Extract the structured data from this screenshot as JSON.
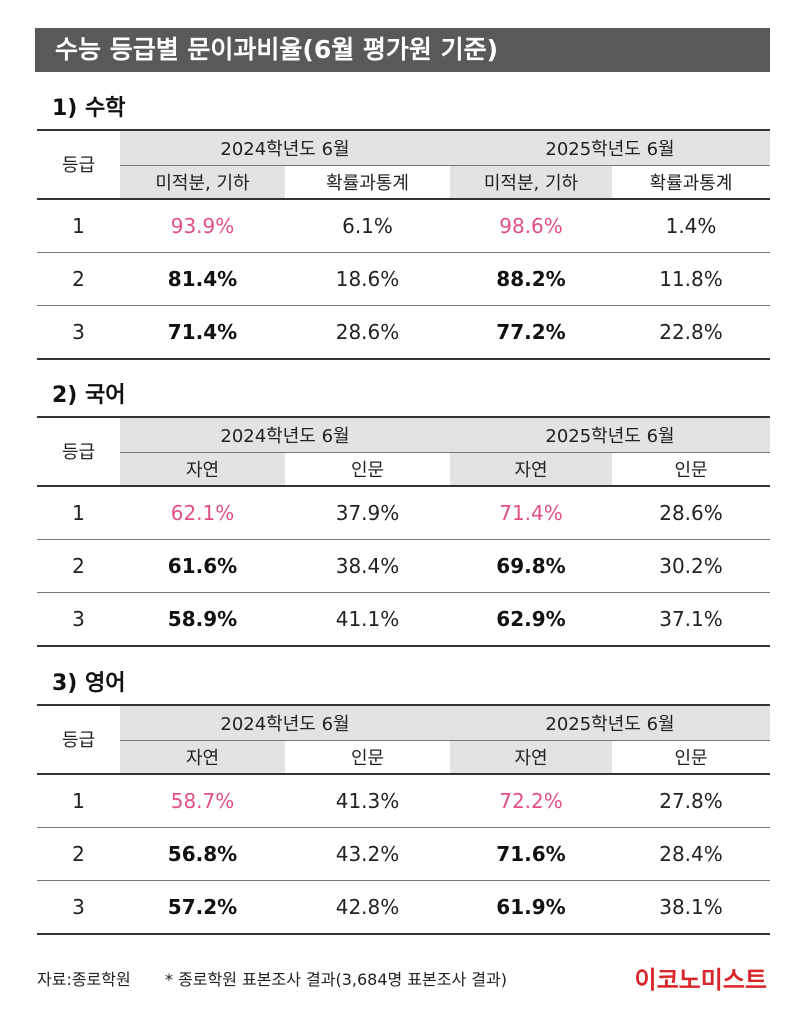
{
  "title": "수능 등급별 문이과비율(6월 평가원 기준)",
  "sections": [
    {
      "heading": "1) 수학",
      "table": {
        "grade_header": "등급",
        "year_headers": [
          "2024학년도 6월",
          "2025학년도 6월"
        ],
        "sub_headers": [
          "미적분, 기하",
          "확률과통계",
          "미적분, 기하",
          "확률과통계"
        ],
        "rows": [
          [
            "1",
            "93.9%",
            "6.1%",
            "98.6%",
            "1.4%"
          ],
          [
            "2",
            "81.4%",
            "18.6%",
            "88.2%",
            "11.8%"
          ],
          [
            "3",
            "71.4%",
            "28.6%",
            "77.2%",
            "22.8%"
          ]
        ]
      }
    },
    {
      "heading": "2) 국어",
      "table": {
        "grade_header": "등급",
        "year_headers": [
          "2024학년도 6월",
          "2025학년도 6월"
        ],
        "sub_headers": [
          "자연",
          "인문",
          "자연",
          "인문"
        ],
        "rows": [
          [
            "1",
            "62.1%",
            "37.9%",
            "71.4%",
            "28.6%"
          ],
          [
            "2",
            "61.6%",
            "38.4%",
            "69.8%",
            "30.2%"
          ],
          [
            "3",
            "58.9%",
            "41.1%",
            "62.9%",
            "37.1%"
          ]
        ]
      }
    },
    {
      "heading": "3) 영어",
      "table": {
        "grade_header": "등급",
        "year_headers": [
          "2024학년도 6월",
          "2025학년도 6월"
        ],
        "sub_headers": [
          "자연",
          "인문",
          "자연",
          "인문"
        ],
        "rows": [
          [
            "1",
            "58.7%",
            "41.3%",
            "72.2%",
            "27.8%"
          ],
          [
            "2",
            "56.8%",
            "43.2%",
            "71.6%",
            "28.4%"
          ],
          [
            "3",
            "57.2%",
            "42.8%",
            "61.9%",
            "38.1%"
          ]
        ]
      }
    }
  ],
  "footer": {
    "source": "자료:종로학원",
    "note": "* 종로학원 표본조사 결과(3,684명 표본조사 결과)",
    "logo": "이코노미스트"
  }
}
